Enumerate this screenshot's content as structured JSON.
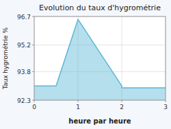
{
  "chart_data": {
    "type": "area",
    "title": "Evolution du taux d'hygrométrie",
    "xlabel": "heure par heure",
    "ylabel": "Taux hygrométrie %",
    "x": [
      0,
      0.5,
      1,
      2,
      2,
      3
    ],
    "values": [
      93.05,
      93.05,
      96.55,
      93.05,
      92.95,
      92.95
    ],
    "color": "#5bb8d4",
    "xlim": [
      0,
      3
    ],
    "ylim": [
      92.3,
      96.7
    ],
    "xticks": [
      0,
      1,
      2,
      3
    ],
    "yticks": [
      92.3,
      93.8,
      95.2,
      96.7
    ],
    "grid": true
  }
}
